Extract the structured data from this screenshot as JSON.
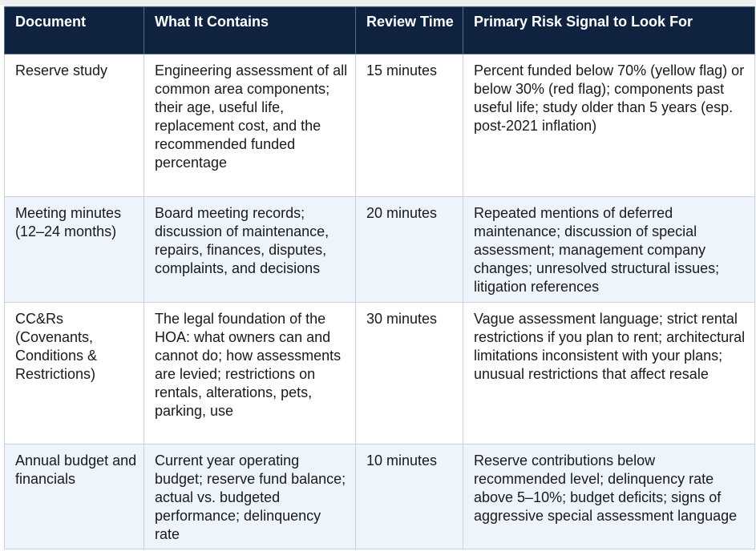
{
  "table": {
    "header": [
      "Document",
      "What It Contains",
      "Review Time",
      "Primary Risk Signal to Look For"
    ],
    "rows": [
      [
        "Reserve study",
        "Engineering assessment of all common area components; their age, useful life, replacement cost, and the recommended funded percentage",
        "15 minutes",
        "Percent funded below 70% (yellow flag) or below 30% (red flag); components past useful life; study older than 5 years (esp. post-2021 inflation)"
      ],
      [
        "Meeting minutes (12–24 months)",
        "Board meeting records; discussion of maintenance, repairs, finances, disputes, complaints, and decisions",
        "20 minutes",
        "Repeated mentions of deferred maintenance; discussion of special assessment; management company changes; unresolved structural issues; litigation references"
      ],
      [
        "CC&Rs (Covenants, Conditions & Restrictions)",
        "The legal foundation of the HOA: what owners can and cannot do; how assessments are levied; restrictions on rentals, alterations, pets, parking, use",
        "30 minutes",
        "Vague assessment language; strict rental restrictions if you plan to rent; architectural limitations inconsistent with your plans; unusual restrictions that affect resale"
      ],
      [
        "Annual budget and financials",
        "Current year operating budget; reserve fund balance; actual vs. budgeted performance; delinquency rate",
        "10 minutes",
        "Reserve contributions below recommended level; delinquency rate above 5–10%; budget deficits; signs of aggressive special assessment language"
      ]
    ]
  }
}
